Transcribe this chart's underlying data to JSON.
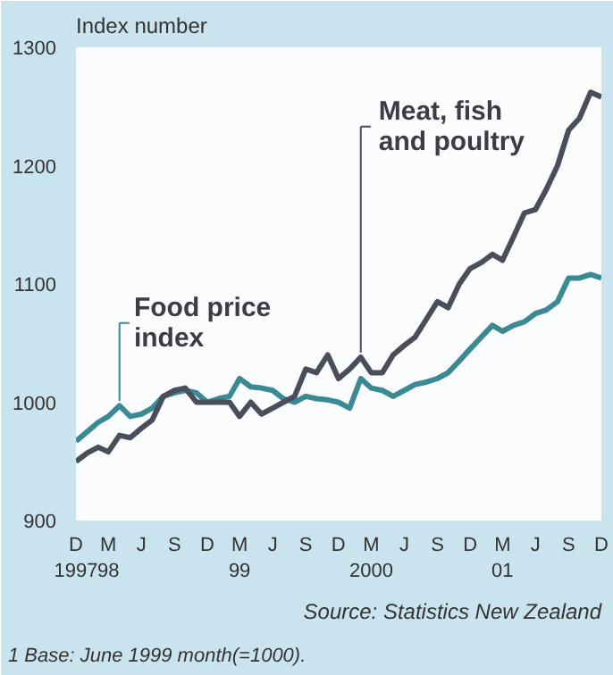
{
  "chart_data": {
    "type": "line",
    "ylabel": "Index number",
    "x": [
      "1997-12",
      "1998-01",
      "1998-02",
      "1998-03",
      "1998-04",
      "1998-05",
      "1998-06",
      "1998-07",
      "1998-08",
      "1998-09",
      "1998-10",
      "1998-11",
      "1998-12",
      "1999-01",
      "1999-02",
      "1999-03",
      "1999-04",
      "1999-05",
      "1999-06",
      "1999-07",
      "1999-08",
      "1999-09",
      "1999-10",
      "1999-11",
      "1999-12",
      "2000-01",
      "2000-02",
      "2000-03",
      "2000-04",
      "2000-05",
      "2000-06",
      "2000-07",
      "2000-08",
      "2000-09",
      "2000-10",
      "2000-11",
      "2000-12",
      "2001-01",
      "2001-02",
      "2001-03",
      "2001-04",
      "2001-05",
      "2001-06",
      "2001-07",
      "2001-08",
      "2001-09",
      "2001-10",
      "2001-11",
      "2001-12"
    ],
    "series": [
      {
        "name": "Food price index",
        "color": "#3a8a94",
        "values": [
          967,
          975,
          983,
          988,
          997,
          988,
          990,
          995,
          1005,
          1008,
          1010,
          1008,
          1000,
          1003,
          1005,
          1020,
          1013,
          1012,
          1010,
          1003,
          1000,
          1005,
          1003,
          1002,
          1000,
          995,
          1020,
          1012,
          1010,
          1005,
          1010,
          1015,
          1017,
          1020,
          1025,
          1035,
          1045,
          1055,
          1065,
          1060,
          1065,
          1068,
          1075,
          1078,
          1085,
          1105,
          1105,
          1108,
          1105
        ]
      },
      {
        "name": "Meat, fish and poultry",
        "color": "#4a4d5a",
        "values": [
          950,
          957,
          962,
          958,
          972,
          970,
          978,
          985,
          1005,
          1010,
          1012,
          1000,
          1000,
          1000,
          1000,
          988,
          1000,
          990,
          995,
          1000,
          1005,
          1028,
          1025,
          1040,
          1020,
          1028,
          1038,
          1025,
          1025,
          1040,
          1048,
          1055,
          1070,
          1085,
          1080,
          1100,
          1113,
          1118,
          1125,
          1120,
          1140,
          1160,
          1163,
          1180,
          1200,
          1230,
          1240,
          1262,
          1258
        ]
      }
    ],
    "xlim": [
      "1997-12",
      "2001-12"
    ],
    "xticks": [
      {
        "value": "1997-12",
        "label": "D\n1997"
      },
      {
        "value": "1998-03",
        "label": "M\n98"
      },
      {
        "value": "1998-06",
        "label": "J"
      },
      {
        "value": "1998-09",
        "label": "S"
      },
      {
        "value": "1998-12",
        "label": "D"
      },
      {
        "value": "1999-03",
        "label": "M\n99"
      },
      {
        "value": "1999-06",
        "label": "J"
      },
      {
        "value": "1999-09",
        "label": "S"
      },
      {
        "value": "1999-12",
        "label": "D"
      },
      {
        "value": "2000-03",
        "label": "M\n2000"
      },
      {
        "value": "2000-06",
        "label": "J"
      },
      {
        "value": "2000-09",
        "label": "S"
      },
      {
        "value": "2000-12",
        "label": "D"
      },
      {
        "value": "2001-03",
        "label": "M\n01"
      },
      {
        "value": "2001-06",
        "label": "J"
      },
      {
        "value": "2001-09",
        "label": "S"
      },
      {
        "value": "2001-12",
        "label": "D"
      }
    ],
    "ylim": [
      900,
      1300
    ],
    "yticks": [
      900,
      1000,
      1100,
      1200,
      1300
    ],
    "grid": false,
    "legend": "top left",
    "line_style": "solid",
    "marker": "none",
    "annotations": [
      "Source: Statistics New Zealand",
      "1 Base: June 1999 month(=1000)."
    ]
  }
}
